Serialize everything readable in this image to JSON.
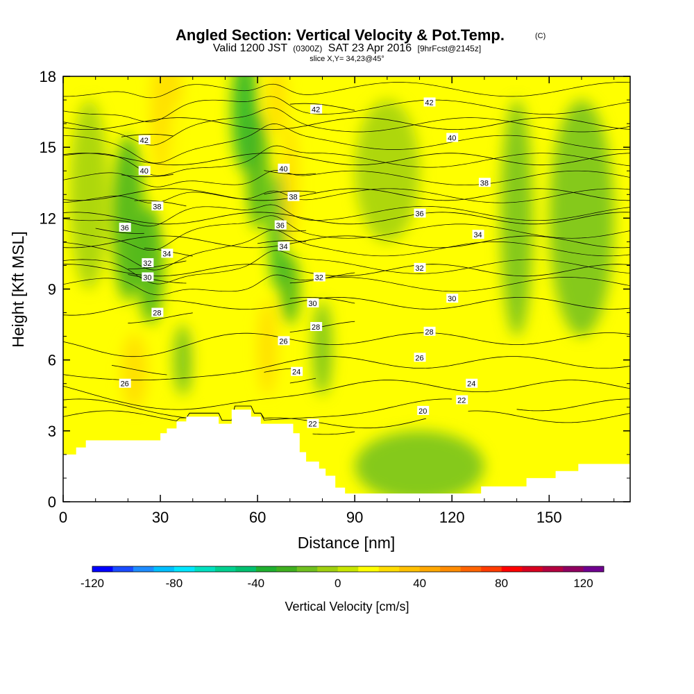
{
  "chart_data": {
    "type": "heatmap",
    "title": "Angled Section: Vertical Velocity & Pot.Temp.",
    "title_unit": "(C)",
    "subtitle_parts": [
      "Valid 1200 JST",
      "(0300Z)",
      "SAT 23 Apr 2016",
      "[9hrFcst@2145z]"
    ],
    "slice_label": "slice X,Y= 34,23@45°",
    "xlabel": "Distance [nm]",
    "ylabel": "Height [Kft MSL]",
    "xlim": [
      0,
      175
    ],
    "ylim": [
      0,
      18
    ],
    "x_ticks": [
      0,
      30,
      60,
      90,
      120,
      150
    ],
    "x_tick_labels": [
      "0",
      "30",
      "60",
      "90",
      "120",
      "150"
    ],
    "y_ticks": [
      0,
      3,
      6,
      9,
      12,
      15,
      18
    ],
    "y_tick_labels": [
      "0",
      "3",
      "6",
      "9",
      "12",
      "15",
      "18"
    ],
    "terrain": [
      [
        0,
        2
      ],
      [
        4,
        2
      ],
      [
        4,
        2.3
      ],
      [
        7,
        2.3
      ],
      [
        7,
        2.6
      ],
      [
        30,
        2.6
      ],
      [
        30,
        2.9
      ],
      [
        32,
        2.9
      ],
      [
        32,
        3.1
      ],
      [
        35,
        3.1
      ],
      [
        35,
        3.4
      ],
      [
        38,
        3.4
      ],
      [
        38,
        3.6
      ],
      [
        48,
        3.6
      ],
      [
        48,
        3.3
      ],
      [
        52,
        3.3
      ],
      [
        52,
        3.9
      ],
      [
        58,
        3.9
      ],
      [
        58,
        3.6
      ],
      [
        61,
        3.6
      ],
      [
        61,
        3.3
      ],
      [
        71,
        3.3
      ],
      [
        71,
        2.9
      ],
      [
        73,
        2.9
      ],
      [
        73,
        2.1
      ],
      [
        75,
        2.1
      ],
      [
        75,
        1.7
      ],
      [
        79,
        1.7
      ],
      [
        79,
        1.4
      ],
      [
        81,
        1.4
      ],
      [
        81,
        1.1
      ],
      [
        84,
        1.1
      ],
      [
        84,
        0.6
      ],
      [
        87,
        0.6
      ],
      [
        87,
        0.35
      ],
      [
        129,
        0.35
      ],
      [
        129,
        0.65
      ],
      [
        143,
        0.65
      ],
      [
        143,
        1.0
      ],
      [
        152,
        1.0
      ],
      [
        152,
        1.3
      ],
      [
        159,
        1.3
      ],
      [
        159,
        1.6
      ],
      [
        175,
        1.6
      ]
    ],
    "colorbar": {
      "title": "Vertical Velocity [cm/s]",
      "min": -120,
      "max": 130,
      "tick_values": [
        -120,
        -80,
        -40,
        0,
        40,
        80,
        120
      ],
      "tick_labels": [
        "-120",
        "-80",
        "-40",
        "0",
        "40",
        "80",
        "120"
      ],
      "colors": [
        "#0000ff",
        "#1a4cff",
        "#1e8cff",
        "#00bfff",
        "#00e6ff",
        "#00e0c0",
        "#00d090",
        "#00c070",
        "#20b030",
        "#40b020",
        "#70c020",
        "#a0d010",
        "#c8e600",
        "#ffff00",
        "#ffdc00",
        "#ffc000",
        "#ffa800",
        "#ff8c00",
        "#ff6400",
        "#ff3c00",
        "#ff0000",
        "#d80020",
        "#b40040",
        "#900060",
        "#700090"
      ]
    },
    "velocity_field": [
      {
        "x": 20,
        "y": 12.0,
        "sx": 5,
        "sy": 3.5,
        "a": -22
      },
      {
        "x": 27,
        "y": 10.0,
        "sx": 4,
        "sy": 2.5,
        "a": -28
      },
      {
        "x": 32,
        "y": 16.5,
        "sx": 5,
        "sy": 3.0,
        "a": 22
      },
      {
        "x": 36,
        "y": 14.0,
        "sx": 4,
        "sy": 3.0,
        "a": 16
      },
      {
        "x": 22,
        "y": 5.5,
        "sx": 4,
        "sy": 1.6,
        "a": 22
      },
      {
        "x": 37,
        "y": 6.0,
        "sx": 3,
        "sy": 1.5,
        "a": -14
      },
      {
        "x": 46,
        "y": 7.0,
        "sx": 4,
        "sy": 2.0,
        "a": 10
      },
      {
        "x": 56,
        "y": 16.5,
        "sx": 4,
        "sy": 2.5,
        "a": -38
      },
      {
        "x": 60,
        "y": 14.0,
        "sx": 3.5,
        "sy": 2.5,
        "a": -30
      },
      {
        "x": 66,
        "y": 11.5,
        "sx": 2.5,
        "sy": 2.5,
        "a": -32
      },
      {
        "x": 70,
        "y": 9.0,
        "sx": 3,
        "sy": 1.5,
        "a": -22
      },
      {
        "x": 66,
        "y": 17.0,
        "sx": 3,
        "sy": 1.5,
        "a": 26
      },
      {
        "x": 70,
        "y": 13.5,
        "sx": 2.5,
        "sy": 2.5,
        "a": 20
      },
      {
        "x": 63,
        "y": 6.5,
        "sx": 3,
        "sy": 2.0,
        "a": 26
      },
      {
        "x": 80,
        "y": 6.5,
        "sx": 3,
        "sy": 2.0,
        "a": -16
      },
      {
        "x": 110,
        "y": 1.5,
        "sx": 20,
        "sy": 1.5,
        "a": -12
      },
      {
        "x": 140,
        "y": 12.0,
        "sx": 5,
        "sy": 5.0,
        "a": -14
      },
      {
        "x": 160,
        "y": 12.0,
        "sx": 10,
        "sy": 5.0,
        "a": -12
      },
      {
        "x": 100,
        "y": 14.0,
        "sx": 10,
        "sy": 3.0,
        "a": -8
      },
      {
        "x": 8,
        "y": 13.0,
        "sx": 6,
        "sy": 4.0,
        "a": -10
      }
    ],
    "theta_levels": [
      {
        "value": 20,
        "base": 3.6,
        "dip": 0.4,
        "peak": 80,
        "gap": [
          112,
          125
        ],
        "label": {
          "x": 111,
          "y": 3.85
        }
      },
      {
        "value": 22,
        "base": 4.1,
        "dip": 0.9,
        "peak": 60,
        "gap": [
          120,
          140
        ],
        "label": {
          "x": 123,
          "y": 4.3
        }
      },
      {
        "value": 22,
        "base": 3.1,
        "dip": 0,
        "peak": 0,
        "x_start": 77,
        "x_end": 90,
        "label": {
          "x": 77,
          "y": 3.3
        }
      },
      {
        "value": 24,
        "base": 4.9,
        "dip": 1.2,
        "peak": 40,
        "label": {
          "x": 126,
          "y": 5.0
        }
      },
      {
        "value": 24,
        "base": 5.2,
        "dip": 0,
        "peak": 0,
        "x_start": 70,
        "x_end": 78,
        "label": {
          "x": 72,
          "y": 5.5
        }
      },
      {
        "value": 26,
        "base": 5.9,
        "dip": 1.0,
        "peak": 25,
        "label": {
          "x": 110,
          "y": 6.1
        }
      },
      {
        "value": 26,
        "base": 5.4,
        "dip": 0,
        "peak": 0,
        "x_start": 62,
        "x_end": 72,
        "label": {
          "x": 68,
          "y": 6.8
        }
      },
      {
        "value": 26,
        "base": 5.6,
        "dip": 0,
        "peak": 0,
        "x_start": 15,
        "x_end": 32,
        "label": {
          "x": 19,
          "y": 5.0
        }
      },
      {
        "value": 28,
        "base": 6.9,
        "dip": 0.6,
        "peak": 15,
        "label": {
          "x": 113,
          "y": 7.2
        }
      },
      {
        "value": 28,
        "base": 7.8,
        "dip": 0,
        "peak": 0,
        "x_start": 20,
        "x_end": 40,
        "label": {
          "x": 29,
          "y": 8.0
        }
      },
      {
        "value": 28,
        "base": 7.4,
        "dip": 0,
        "peak": 0,
        "x_start": 70,
        "x_end": 90,
        "label": {
          "x": 78,
          "y": 7.4
        }
      },
      {
        "value": 30,
        "base": 8.4,
        "dip": 0.3,
        "peak": 10,
        "label": {
          "x": 120,
          "y": 8.6
        }
      },
      {
        "value": 30,
        "base": 8.4,
        "dip": 0,
        "peak": 0,
        "x_start": 70,
        "x_end": 90,
        "label": {
          "x": 77,
          "y": 8.4
        }
      },
      {
        "value": 30,
        "base": 9.5,
        "dip": 0,
        "peak": 0,
        "x_start": 20,
        "x_end": 38,
        "label": {
          "x": 26,
          "y": 9.5
        }
      },
      {
        "value": 32,
        "base": 9.8,
        "dip": 0,
        "peak": 0,
        "label": {
          "x": 110,
          "y": 9.9
        }
      },
      {
        "value": 32,
        "base": 10.1,
        "dip": 0,
        "peak": 0,
        "x_start": 20,
        "x_end": 38,
        "label": {
          "x": 26,
          "y": 10.1
        }
      },
      {
        "value": 32,
        "base": 9.5,
        "dip": 0,
        "peak": 0,
        "x_start": 70,
        "x_end": 90,
        "label": {
          "x": 79,
          "y": 9.5
        }
      },
      {
        "value": 34,
        "base": 11.0,
        "dip": 0,
        "peak": 0,
        "label": {
          "x": 128,
          "y": 11.3
        }
      },
      {
        "value": 34,
        "base": 10.5,
        "dip": 0,
        "peak": 0,
        "x_start": 25,
        "x_end": 40,
        "label": {
          "x": 32,
          "y": 10.5
        }
      },
      {
        "value": 34,
        "base": 10.8,
        "dip": 0,
        "peak": 0,
        "x_start": 60,
        "x_end": 75,
        "label": {
          "x": 68,
          "y": 10.8
        }
      },
      {
        "value": 36,
        "base": 12.0,
        "dip": 0,
        "peak": 0,
        "label": {
          "x": 110,
          "y": 12.2
        }
      },
      {
        "value": 36,
        "base": 11.6,
        "dip": 0,
        "peak": 0,
        "x_start": 10,
        "x_end": 25,
        "label": {
          "x": 19,
          "y": 11.6
        }
      },
      {
        "value": 36,
        "base": 11.7,
        "dip": 0,
        "peak": 0,
        "x_start": 60,
        "x_end": 75,
        "label": {
          "x": 67,
          "y": 11.7
        }
      },
      {
        "value": 38,
        "base": 13.0,
        "dip": 0,
        "peak": 0,
        "label": {
          "x": 130,
          "y": 13.5
        }
      },
      {
        "value": 38,
        "base": 12.5,
        "dip": 0,
        "peak": 0,
        "x_start": 22,
        "x_end": 38,
        "label": {
          "x": 29,
          "y": 12.5
        }
      },
      {
        "value": 38,
        "base": 12.9,
        "dip": 0,
        "peak": 0,
        "x_start": 62,
        "x_end": 78,
        "label": {
          "x": 71,
          "y": 12.9
        }
      },
      {
        "value": 40,
        "base": 14.5,
        "dip": 0,
        "peak": 0,
        "label": {
          "x": 120,
          "y": 15.4
        }
      },
      {
        "value": 40,
        "base": 14.0,
        "dip": 0,
        "peak": 0,
        "x_start": 18,
        "x_end": 34,
        "label": {
          "x": 25,
          "y": 14.0
        }
      },
      {
        "value": 40,
        "base": 14.1,
        "dip": 0,
        "peak": 0,
        "x_start": 62,
        "x_end": 78,
        "label": {
          "x": 68,
          "y": 14.1
        }
      },
      {
        "value": 42,
        "base": 16.0,
        "dip": 0,
        "peak": 0,
        "label": {
          "x": 113,
          "y": 16.9
        }
      },
      {
        "value": 42,
        "base": 15.3,
        "dip": 0,
        "peak": 0,
        "x_start": 18,
        "x_end": 34,
        "label": {
          "x": 25,
          "y": 15.3
        }
      },
      {
        "value": 42,
        "base": 16.6,
        "dip": 0,
        "peak": 0,
        "x_start": 70,
        "x_end": 90,
        "label": {
          "x": 78,
          "y": 16.6
        }
      }
    ],
    "extra_isentrope_count": 12
  }
}
